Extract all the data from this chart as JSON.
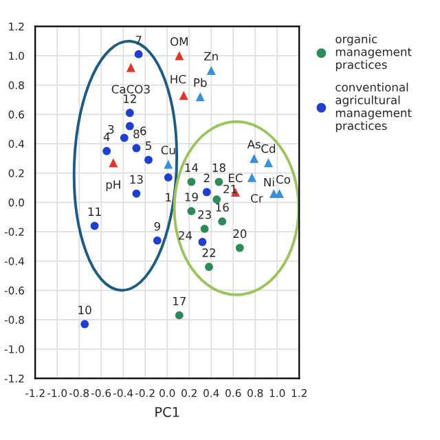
{
  "chart_data": {
    "type": "scatter",
    "xlabel": "PC1",
    "xlim": [
      -1.2,
      1.2
    ],
    "xticks": [
      -1.2,
      {
        "value": -1.0,
        "label": "-1.0"
      },
      -0.8,
      -0.6,
      -0.4,
      -0.2,
      {
        "value": 0.0,
        "label": "0.0"
      },
      0.2,
      0.4,
      0.6,
      0.8,
      {
        "value": 1.0,
        "label": "1.0"
      },
      1.2
    ],
    "ylim": [
      -1.2,
      1.2
    ],
    "yticks": [
      -1.2,
      {
        "value": -1.0,
        "label": "-1.0"
      },
      -0.8,
      -0.6,
      -0.4,
      -0.2,
      {
        "value": 0.0,
        "label": "0.0"
      },
      0.2,
      0.4,
      0.6,
      0.8,
      {
        "value": 1.0,
        "label": "1.0"
      },
      1.2
    ],
    "grid": true,
    "legend": "right",
    "series": [
      {
        "name": "organic management practices",
        "color": "#2e8b57",
        "marker": "circle",
        "x": [
          0.22,
          0.47,
          0.45,
          0.22,
          0.34,
          0.5,
          0.66,
          0.38,
          0.11
        ],
        "values": [
          0.14,
          0.14,
          0.02,
          -0.06,
          -0.18,
          -0.13,
          -0.31,
          -0.44,
          -0.77
        ]
      },
      {
        "name": "conventional agricultural management practices",
        "color": "#1f3fcf",
        "marker": "circle",
        "x": [
          -0.26,
          -0.34,
          -0.34,
          -0.39,
          -0.28,
          -0.55,
          -0.17,
          0.01,
          -0.28,
          -0.66,
          -0.09,
          -0.75,
          0.36,
          0.32
        ],
        "values": [
          1.01,
          0.61,
          0.52,
          0.44,
          0.37,
          0.35,
          0.29,
          0.17,
          0.06,
          -0.16,
          -0.26,
          -0.83,
          0.07,
          -0.27
        ]
      },
      {
        "color": "#e0352b",
        "marker": "triangle",
        "x": [
          0.11,
          0.15,
          -0.33,
          -0.49,
          0.62
        ],
        "values": [
          1.0,
          0.73,
          0.92,
          0.27,
          0.07
        ]
      },
      {
        "color": "#3a8fd6",
        "marker": "triangle",
        "x": [
          0.4,
          0.3,
          0.01,
          0.79,
          0.92,
          0.77,
          0.97,
          1.02
        ],
        "values": [
          0.9,
          0.72,
          0.26,
          0.3,
          0.27,
          0.17,
          0.06,
          0.06
        ]
      }
    ],
    "annotations": [
      {
        "text": "14",
        "x": 0.22,
        "y": 0.14
      },
      {
        "text": "18",
        "x": 0.47,
        "y": 0.14
      },
      {
        "text": "21",
        "x": 0.45,
        "y": 0.02
      },
      {
        "text": "19",
        "x": 0.22,
        "y": -0.06
      },
      {
        "text": "23",
        "x": 0.34,
        "y": -0.18
      },
      {
        "text": "16",
        "x": 0.5,
        "y": -0.13
      },
      {
        "text": "20",
        "x": 0.66,
        "y": -0.31
      },
      {
        "text": "22",
        "x": 0.38,
        "y": -0.44
      },
      {
        "text": "17",
        "x": 0.11,
        "y": -0.77
      },
      {
        "text": "7",
        "x": -0.26,
        "y": 1.01
      },
      {
        "text": "12",
        "x": -0.34,
        "y": 0.61
      },
      {
        "text": "6",
        "x": -0.34,
        "y": 0.52
      },
      {
        "text": "3",
        "x": -0.39,
        "y": 0.44
      },
      {
        "text": "8",
        "x": -0.28,
        "y": 0.37
      },
      {
        "text": "4",
        "x": -0.55,
        "y": 0.35
      },
      {
        "text": "5",
        "x": -0.17,
        "y": 0.29
      },
      {
        "text": "1",
        "x": 0.01,
        "y": 0.17
      },
      {
        "text": "13",
        "x": -0.28,
        "y": 0.06
      },
      {
        "text": "11",
        "x": -0.66,
        "y": -0.16
      },
      {
        "text": "9",
        "x": -0.09,
        "y": -0.26
      },
      {
        "text": "10",
        "x": -0.75,
        "y": -0.83
      },
      {
        "text": "2",
        "x": 0.36,
        "y": 0.07
      },
      {
        "text": "24",
        "x": 0.32,
        "y": -0.27
      },
      {
        "text": "OM",
        "x": 0.11,
        "y": 1.0
      },
      {
        "text": "HC",
        "x": 0.15,
        "y": 0.73
      },
      {
        "text": "CaCO3",
        "x": -0.33,
        "y": 0.92
      },
      {
        "text": "pH",
        "x": -0.49,
        "y": 0.27
      },
      {
        "text": "EC",
        "x": 0.62,
        "y": 0.07
      },
      {
        "text": "Zn",
        "x": 0.4,
        "y": 0.9
      },
      {
        "text": "Pb",
        "x": 0.3,
        "y": 0.72
      },
      {
        "text": "Cu",
        "x": 0.01,
        "y": 0.26
      },
      {
        "text": "As",
        "x": 0.79,
        "y": 0.3
      },
      {
        "text": "Cd",
        "x": 0.92,
        "y": 0.27
      },
      {
        "text": "Ni",
        "x": 0.77,
        "y": 0.17
      },
      {
        "text": "Cr",
        "x": 0.97,
        "y": 0.06
      },
      {
        "text": "Co",
        "x": 1.02,
        "y": 0.06
      }
    ]
  }
}
